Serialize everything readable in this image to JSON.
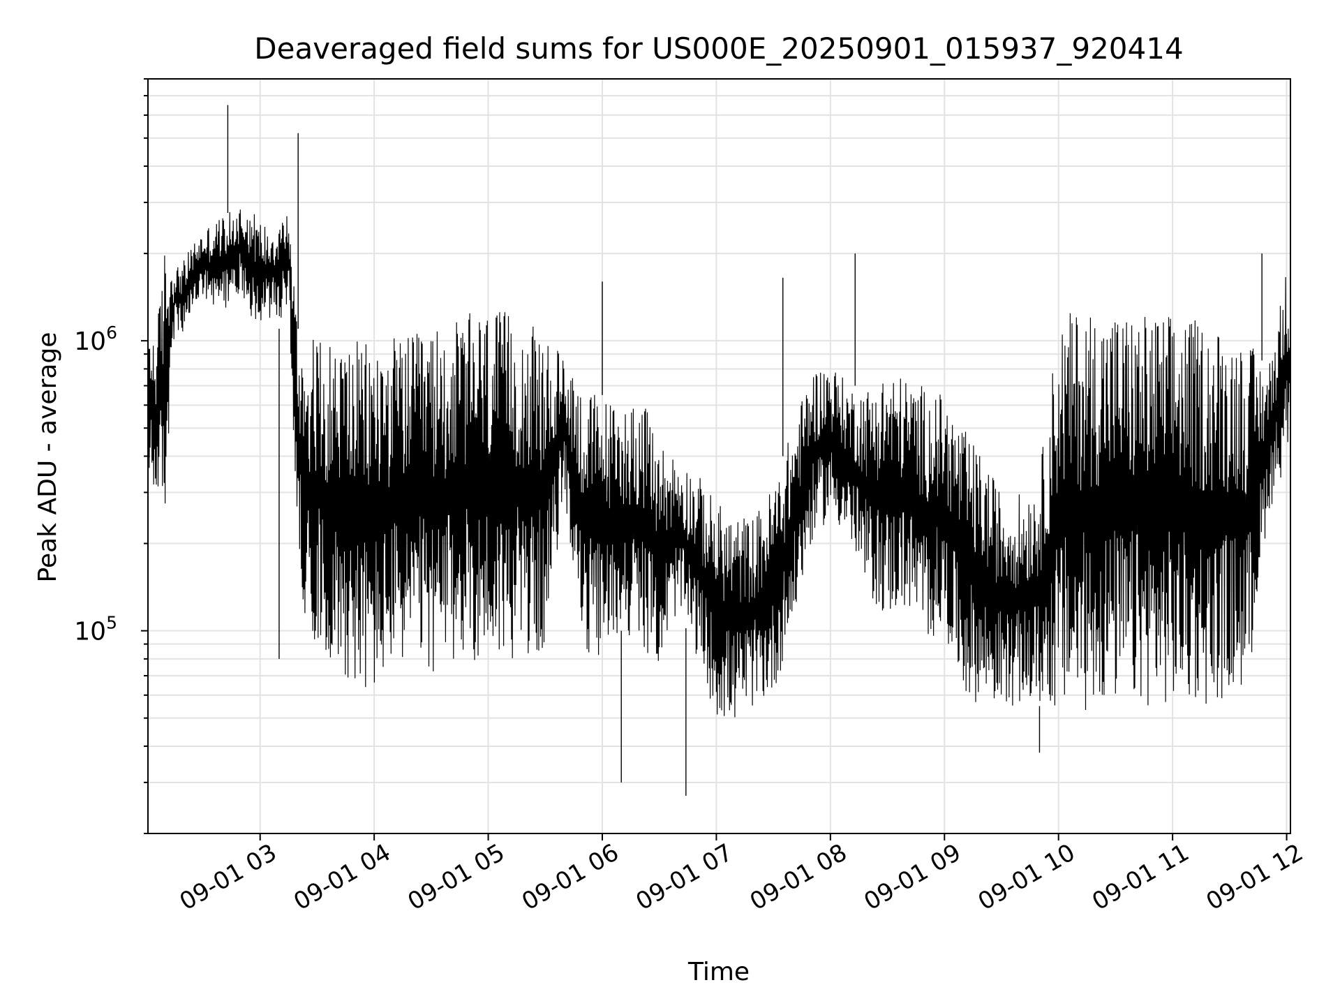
{
  "chart_data": {
    "type": "line",
    "title": "Deaveraged field sums for US000E_20250901_015937_920414",
    "xlabel": "Time",
    "ylabel": "Peak ADU - average",
    "y_scale": "log",
    "grid": true,
    "legend": "none",
    "line_color": "#000000",
    "xlim": [
      "2025-09-01 02:01",
      "2025-09-01 12:02"
    ],
    "ylim": [
      20000,
      8000000
    ],
    "x_ticks": [
      {
        "value": "2025-09-01 03:00",
        "label": "09-01 03"
      },
      {
        "value": "2025-09-01 04:00",
        "label": "09-01 04"
      },
      {
        "value": "2025-09-01 05:00",
        "label": "09-01 05"
      },
      {
        "value": "2025-09-01 06:00",
        "label": "09-01 06"
      },
      {
        "value": "2025-09-01 07:00",
        "label": "09-01 07"
      },
      {
        "value": "2025-09-01 08:00",
        "label": "09-01 08"
      },
      {
        "value": "2025-09-01 09:00",
        "label": "09-01 09"
      },
      {
        "value": "2025-09-01 10:00",
        "label": "09-01 10"
      },
      {
        "value": "2025-09-01 11:00",
        "label": "09-01 11"
      },
      {
        "value": "2025-09-01 12:00",
        "label": "09-01 12"
      }
    ],
    "y_ticks": [
      {
        "value": 100000,
        "base": "10",
        "exp": "5"
      },
      {
        "value": 1000000,
        "base": "10",
        "exp": "6"
      }
    ],
    "series": [
      {
        "x": [
          "2025-09-01 02:01",
          "2025-09-01 02:05",
          "2025-09-01 02:10",
          "2025-09-01 02:15",
          "2025-09-01 02:20",
          "2025-09-01 02:25",
          "2025-09-01 02:30",
          "2025-09-01 02:35",
          "2025-09-01 02:40",
          "2025-09-01 02:45",
          "2025-09-01 02:50",
          "2025-09-01 02:55",
          "2025-09-01 03:00",
          "2025-09-01 03:05",
          "2025-09-01 03:10",
          "2025-09-01 03:15",
          "2025-09-01 03:20",
          "2025-09-01 03:25",
          "2025-09-01 03:30",
          "2025-09-01 03:35",
          "2025-09-01 03:40",
          "2025-09-01 03:45",
          "2025-09-01 03:50",
          "2025-09-01 03:55",
          "2025-09-01 04:00",
          "2025-09-01 04:10",
          "2025-09-01 04:20",
          "2025-09-01 04:30",
          "2025-09-01 04:40",
          "2025-09-01 04:50",
          "2025-09-01 05:00",
          "2025-09-01 05:10",
          "2025-09-01 05:20",
          "2025-09-01 05:30",
          "2025-09-01 05:40",
          "2025-09-01 05:50",
          "2025-09-01 06:00",
          "2025-09-01 06:10",
          "2025-09-01 06:20",
          "2025-09-01 06:30",
          "2025-09-01 06:40",
          "2025-09-01 06:50",
          "2025-09-01 07:00",
          "2025-09-01 07:10",
          "2025-09-01 07:20",
          "2025-09-01 07:30",
          "2025-09-01 07:40",
          "2025-09-01 07:50",
          "2025-09-01 08:00",
          "2025-09-01 08:10",
          "2025-09-01 08:20",
          "2025-09-01 08:30",
          "2025-09-01 08:40",
          "2025-09-01 08:50",
          "2025-09-01 09:00",
          "2025-09-01 09:10",
          "2025-09-01 09:20",
          "2025-09-01 09:30",
          "2025-09-01 09:40",
          "2025-09-01 09:50",
          "2025-09-01 10:00",
          "2025-09-01 10:10",
          "2025-09-01 10:20",
          "2025-09-01 10:30",
          "2025-09-01 10:40",
          "2025-09-01 10:50",
          "2025-09-01 11:00",
          "2025-09-01 11:10",
          "2025-09-01 11:20",
          "2025-09-01 11:30",
          "2025-09-01 11:40",
          "2025-09-01 11:50",
          "2025-09-01 11:55",
          "2025-09-01 12:00",
          "2025-09-01 12:02"
        ],
        "lower": [
          280000,
          300000,
          250000,
          1100000,
          1000000,
          1300000,
          1400000,
          1200000,
          1300000,
          1300000,
          1500000,
          1200000,
          1100000,
          1200000,
          1100000,
          1400000,
          160000,
          100000,
          90000,
          80000,
          75000,
          70000,
          65000,
          60000,
          60000,
          75000,
          80000,
          70000,
          75000,
          80000,
          75000,
          80000,
          80000,
          85000,
          300000,
          80000,
          80000,
          100000,
          90000,
          75000,
          120000,
          80000,
          50000,
          48000,
          55000,
          60000,
          100000,
          200000,
          250000,
          200000,
          130000,
          110000,
          120000,
          90000,
          100000,
          60000,
          55000,
          55000,
          55000,
          55000,
          52000,
          50000,
          55000,
          55000,
          55000,
          55000,
          55000,
          55000,
          55000,
          60000,
          65000,
          250000,
          300000,
          400000,
          450000
        ],
        "upper": [
          1300000,
          1000000,
          2200000,
          1800000,
          1900000,
          2200000,
          2400000,
          2600000,
          2700000,
          2800000,
          3000000,
          2900000,
          2600000,
          2500000,
          2700000,
          2800000,
          1100000,
          1000000,
          1050000,
          1000000,
          1000000,
          1050000,
          1000000,
          1000000,
          1000000,
          1050000,
          1050000,
          1100000,
          1150000,
          1250000,
          1300000,
          1250000,
          1200000,
          1000000,
          900000,
          700000,
          650000,
          600000,
          650000,
          450000,
          400000,
          350000,
          280000,
          250000,
          250000,
          320000,
          500000,
          800000,
          850000,
          700000,
          700000,
          800000,
          750000,
          700000,
          650000,
          500000,
          400000,
          300000,
          300000,
          350000,
          1200000,
          1300000,
          1300000,
          1300000,
          1250000,
          1250000,
          1250000,
          1200000,
          1150000,
          1100000,
          1000000,
          800000,
          1200000,
          1800000,
          1500000
        ]
      }
    ],
    "spikes": [
      {
        "x": "2025-09-01 02:43",
        "y": 6500000
      },
      {
        "x": "2025-09-01 03:20",
        "y": 5200000
      },
      {
        "x": "2025-09-01 03:10",
        "y": 80000
      },
      {
        "x": "2025-09-01 06:10",
        "y": 30000
      },
      {
        "x": "2025-09-01 06:44",
        "y": 27000
      },
      {
        "x": "2025-09-01 08:13",
        "y": 2000000
      },
      {
        "x": "2025-09-01 06:00",
        "y": 1600000
      },
      {
        "x": "2025-09-01 07:35",
        "y": 1650000
      },
      {
        "x": "2025-09-01 09:50",
        "y": 38000
      },
      {
        "x": "2025-09-01 11:47",
        "y": 2000000
      }
    ]
  }
}
